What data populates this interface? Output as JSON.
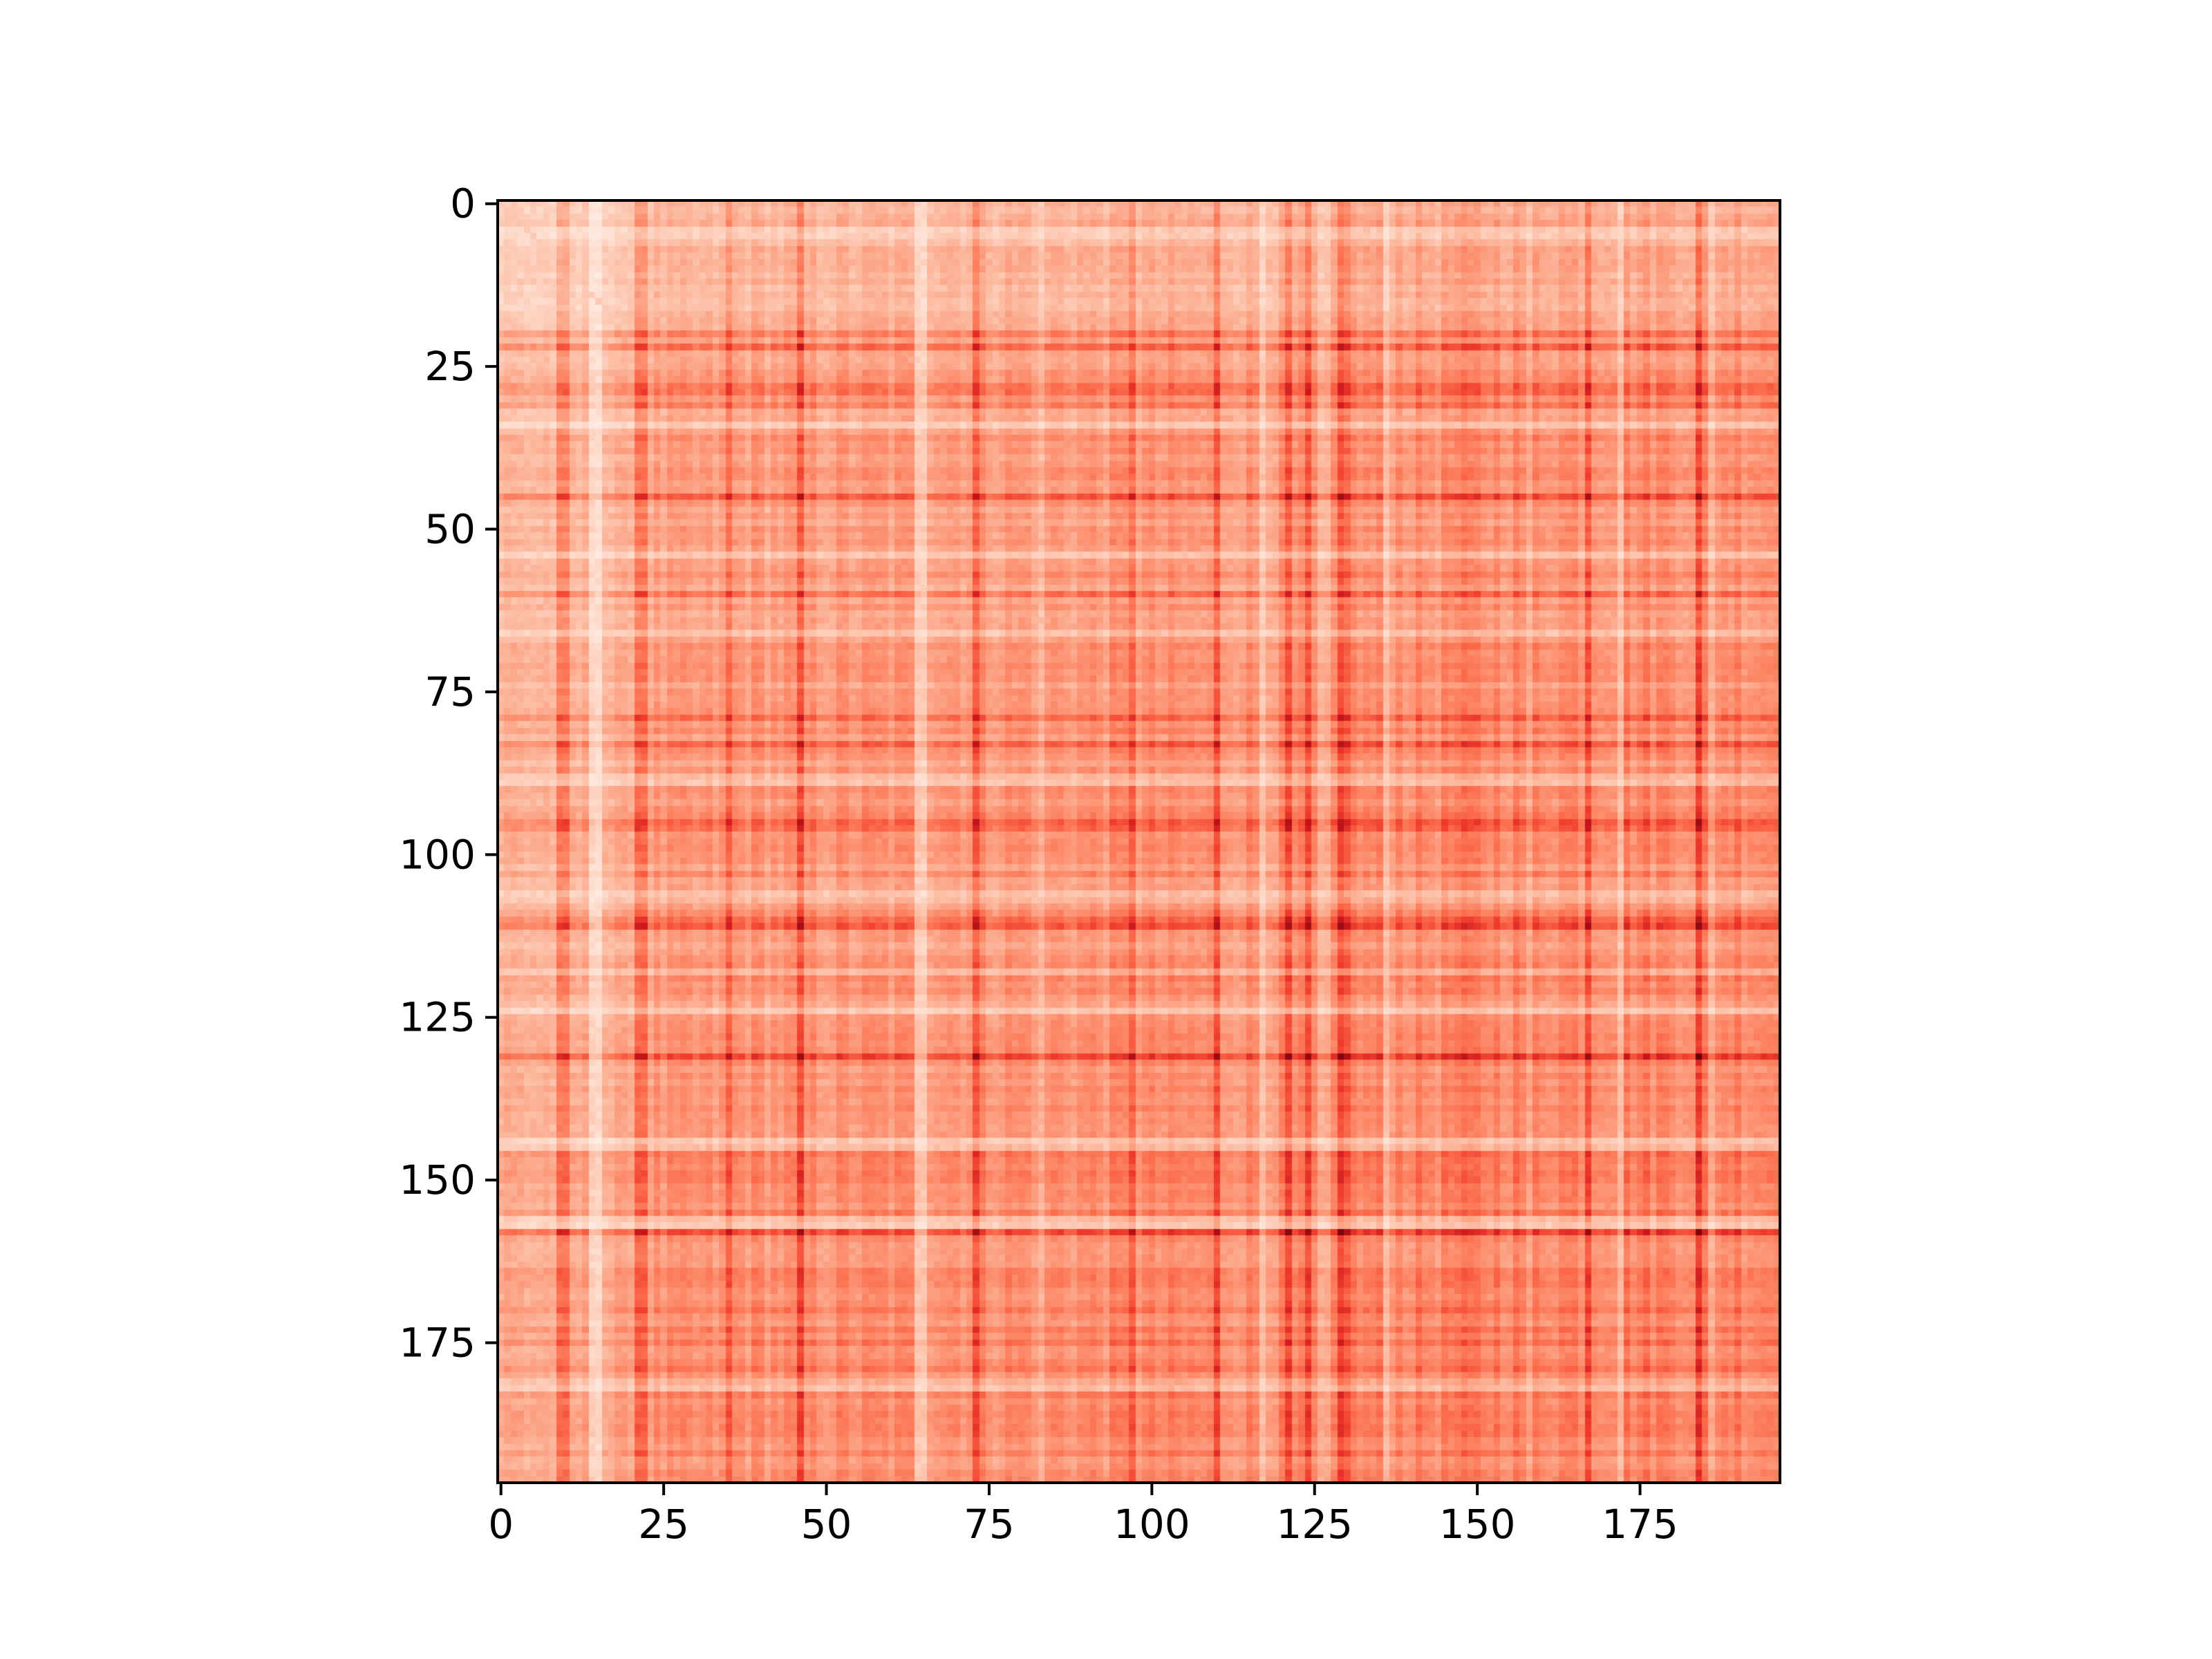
{
  "chart_data": {
    "type": "heatmap",
    "rows": 197,
    "cols": 197,
    "colormap": "Reds",
    "x_ticks": [
      0,
      25,
      50,
      75,
      100,
      125,
      150,
      175
    ],
    "y_ticks": [
      0,
      25,
      50,
      75,
      100,
      125,
      150,
      175
    ],
    "x_tick_labels": [
      "0",
      "25",
      "50",
      "75",
      "100",
      "125",
      "150",
      "175"
    ],
    "y_tick_labels": [
      "0",
      "25",
      "50",
      "75",
      "100",
      "125",
      "150",
      "175"
    ],
    "xlim": [
      -0.5,
      196.5
    ],
    "ylim": [
      196.5,
      -0.5
    ],
    "title": "",
    "xlabel": "",
    "ylabel": "",
    "colors": {
      "low": "#fff5f0",
      "mid": "#fb6a4a",
      "high": "#67000d",
      "axis": "#000000",
      "background": "#ffffff"
    },
    "pattern": {
      "groups": [
        {
          "start": 0,
          "end": 20,
          "level": 0.18
        },
        {
          "start": 20,
          "end": 36,
          "level": 0.3
        },
        {
          "start": 36,
          "end": 66,
          "level": 0.34
        },
        {
          "start": 66,
          "end": 128,
          "level": 0.36
        },
        {
          "start": 128,
          "end": 146,
          "level": 0.4
        },
        {
          "start": 146,
          "end": 197,
          "level": 0.44
        }
      ],
      "hot_rows": [
        20,
        22,
        28,
        29,
        31,
        45,
        60,
        79,
        83,
        95,
        96,
        110,
        111,
        131,
        158
      ],
      "pale_rows": [
        4,
        5,
        34,
        54,
        66,
        88,
        89,
        106,
        107,
        118,
        124,
        144,
        145,
        156,
        157,
        181,
        182
      ],
      "hot_cols": [
        9,
        10,
        21,
        22,
        35,
        46,
        73,
        97,
        110,
        121,
        124,
        129,
        130,
        167,
        184
      ],
      "pale_cols": [
        14,
        15,
        64,
        65,
        83,
        117,
        126,
        127,
        136,
        158,
        172,
        186
      ]
    }
  }
}
